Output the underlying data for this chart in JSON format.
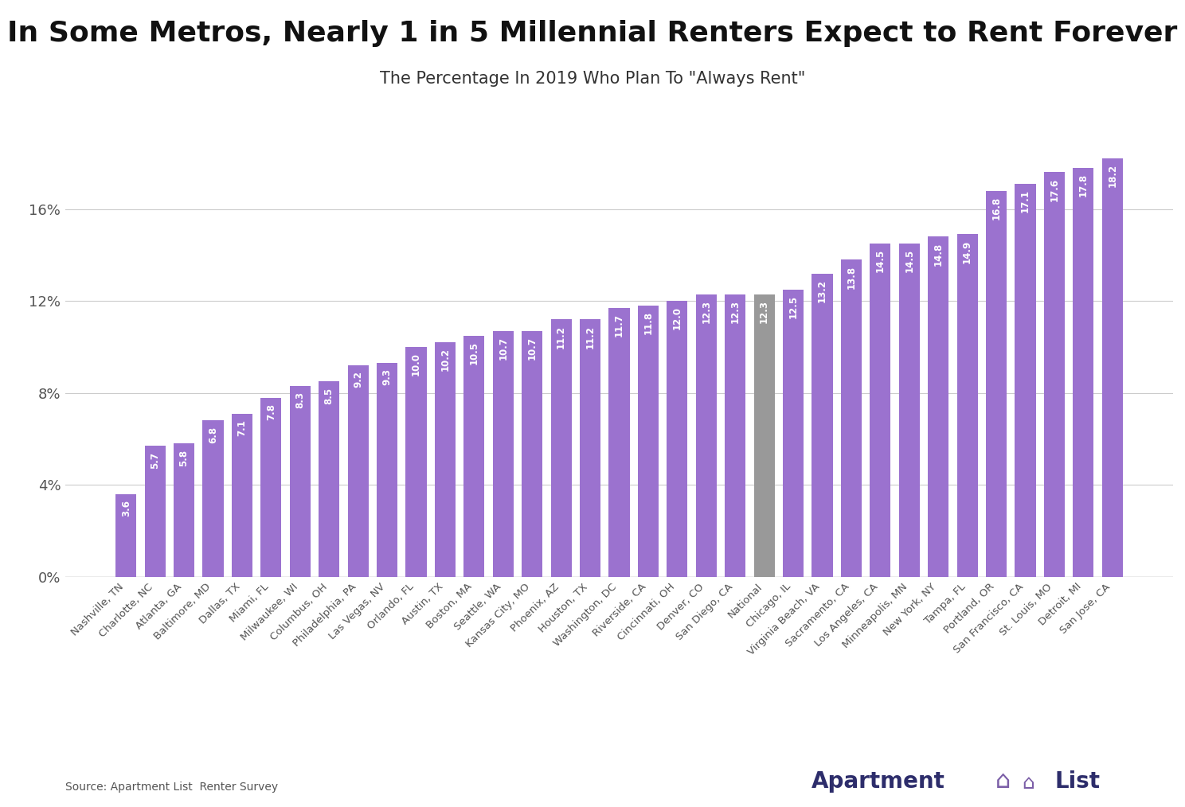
{
  "title": "In Some Metros, Nearly 1 in 5 Millennial Renters Expect to Rent Forever",
  "subtitle": "The Percentage In 2019 Who Plan To \"Always Rent\"",
  "source": "Source: Apartment List  Renter Survey",
  "categories": [
    "Nashville, TN",
    "Charlotte, NC",
    "Atlanta, GA",
    "Baltimore, MD",
    "Dallas, TX",
    "Miami, FL",
    "Milwaukee, WI",
    "Columbus, OH",
    "Philadelphia, PA",
    "Las Vegas, NV",
    "Orlando, FL",
    "Austin, TX",
    "Boston, MA",
    "Seattle, WA",
    "Kansas City, MO",
    "Phoenix, AZ",
    "Houston, TX",
    "Washington, DC",
    "Riverside, CA",
    "Cincinnati, OH",
    "Denver, CO",
    "San Diego, CA",
    "National",
    "Chicago, IL",
    "Virginia Beach, VA",
    "Sacramento, CA",
    "Los Angeles, CA",
    "Minneapolis, MN",
    "New York, NY",
    "Tampa, FL",
    "Portland, OR",
    "San Francisco, CA",
    "St. Louis, MO",
    "Detroit, MI",
    "San Jose, CA"
  ],
  "values": [
    3.6,
    5.7,
    5.8,
    6.8,
    7.1,
    7.8,
    8.3,
    8.5,
    9.2,
    9.3,
    10.0,
    10.2,
    10.5,
    10.7,
    10.7,
    11.2,
    11.2,
    11.7,
    11.8,
    12.0,
    12.3,
    12.3,
    12.3,
    12.5,
    13.2,
    13.8,
    14.5,
    14.5,
    14.8,
    14.9,
    16.8,
    17.1,
    17.6,
    17.8,
    18.2
  ],
  "bar_color_default": "#9b72cf",
  "bar_color_national": "#999999",
  "national_index": 22,
  "label_color": "#ffffff",
  "title_fontsize": 26,
  "subtitle_fontsize": 15,
  "ytick_labels": [
    "0%",
    "4%",
    "8%",
    "12%",
    "16%"
  ],
  "ytick_values": [
    0,
    4,
    8,
    12,
    16
  ],
  "ylim": [
    0,
    20
  ],
  "grid_color": "#cccccc",
  "background_color": "#ffffff",
  "xlabel_fontsize": 9.5,
  "value_label_fontsize": 8.5
}
